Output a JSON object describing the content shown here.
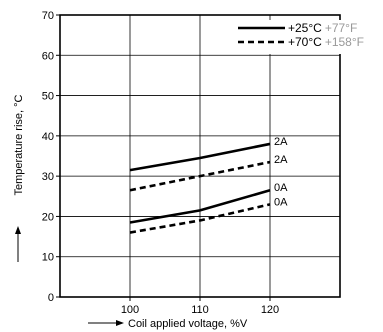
{
  "chart_data": {
    "type": "line",
    "title": "",
    "xlabel": "Coil applied voltage, %V",
    "ylabel": "Temperature rise, °C",
    "xlim": [
      90,
      130
    ],
    "ylim": [
      0,
      70
    ],
    "xticks": [
      100,
      110,
      120
    ],
    "yticks": [
      0,
      10,
      20,
      30,
      40,
      50,
      60,
      70
    ],
    "grid": true,
    "legend_position": "top-right",
    "series": [
      {
        "name": "+25°C",
        "name_alt": "+77°F",
        "style": "solid",
        "label": "2A",
        "x": [
          100,
          110,
          120
        ],
        "y": [
          31.5,
          34.5,
          38
        ]
      },
      {
        "name": "+70°C",
        "name_alt": "+158°F",
        "style": "dashed",
        "label": "2A",
        "x": [
          100,
          110,
          120
        ],
        "y": [
          26.5,
          30,
          33.5
        ]
      },
      {
        "name": "+25°C",
        "name_alt": "+77°F",
        "style": "solid",
        "label": "0A",
        "x": [
          100,
          110,
          120
        ],
        "y": [
          18.5,
          21.5,
          26.5
        ]
      },
      {
        "name": "+70°C",
        "name_alt": "+158°F",
        "style": "dashed",
        "label": "0A",
        "x": [
          100,
          110,
          120
        ],
        "y": [
          16,
          19,
          23
        ]
      }
    ],
    "legend": [
      {
        "primary": "+25°C",
        "secondary": "+77°F",
        "style": "solid"
      },
      {
        "primary": "+70°C",
        "secondary": "+158°F",
        "style": "dashed"
      }
    ],
    "colors": {
      "line": "#000000",
      "secondary_text": "#999999",
      "grid": "#000000"
    }
  }
}
